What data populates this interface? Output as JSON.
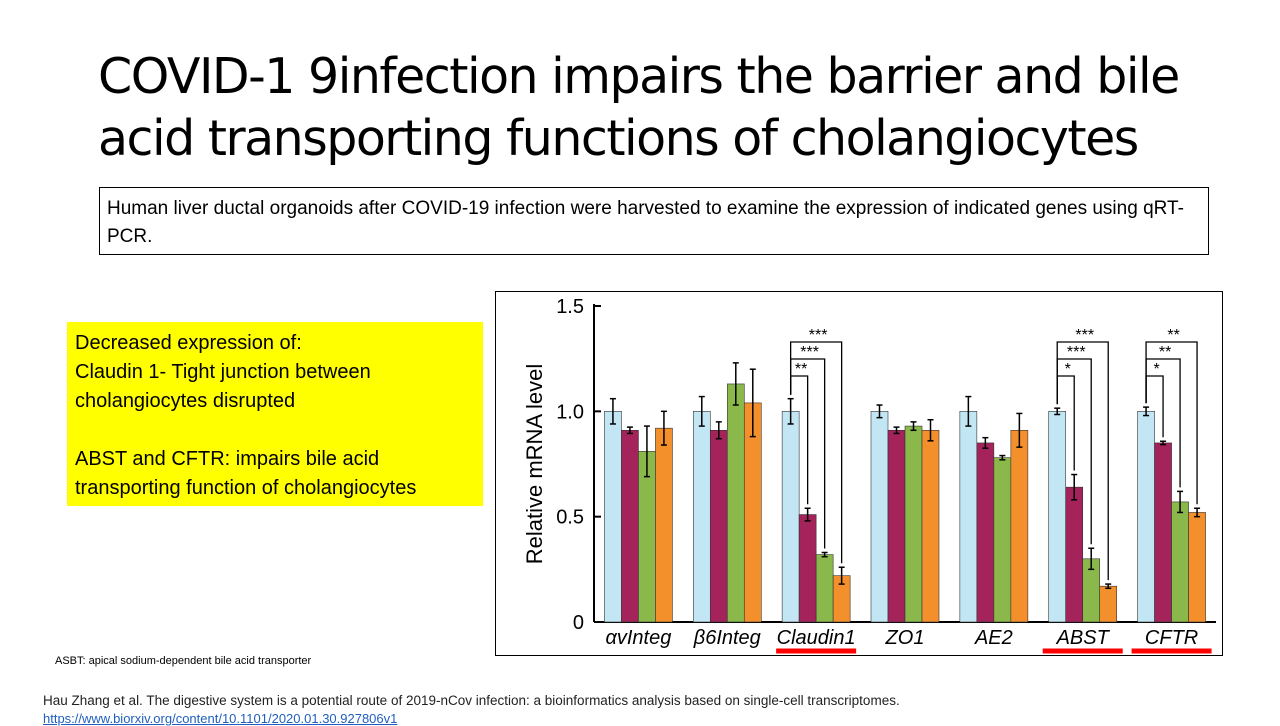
{
  "slide": {
    "title_line1": "COVID-1 9infection impairs the barrier and bile",
    "title_line2": "acid transporting functions of  cholangiocytes",
    "description": "Human liver ductal organoids after COVID-19 infection were harvested to examine the expression of indicated genes using qRT-PCR.",
    "notes": [
      "Decreased expression of:",
      "Claudin 1- Tight junction between",
      "cholangiocytes disrupted",
      "ABST and CFTR: impairs bile acid",
      "transporting function of cholangiocytes"
    ],
    "abbreviation": "ASBT:  apical sodium-dependent bile acid transporter",
    "citation": "Hau Zhang et al. The digestive system is a potential route of 2019-nCov infection: a bioinformatics analysis based on single-cell transcriptomes.",
    "link": "https://www.biorxiv.org/content/10.1101/2020.01.30.927806v1"
  },
  "colors": {
    "series": [
      "#c3e6f5",
      "#a3235a",
      "#8bb84a",
      "#f4902c"
    ],
    "highlight_underline": "#ff0000",
    "note_background": "#ffff00"
  },
  "chart_data": {
    "type": "bar",
    "ylabel": "Relative mRNA level",
    "ylim": [
      0,
      1.5
    ],
    "yticks": [
      "0",
      "0.5",
      "1.0",
      "1.5"
    ],
    "categories": [
      "αvInteg",
      "β6Integ",
      "Claudin1",
      "ZO1",
      "AE2",
      "ABST",
      "CFTR"
    ],
    "highlighted": [
      "Claudin1",
      "ABST",
      "CFTR"
    ],
    "series": [
      {
        "values": [
          1.0,
          1.0,
          1.0,
          1.0,
          1.0,
          1.0,
          1.0
        ],
        "errors": [
          0.06,
          0.07,
          0.06,
          0.03,
          0.07,
          0.015,
          0.02
        ]
      },
      {
        "values": [
          0.91,
          0.91,
          0.51,
          0.91,
          0.85,
          0.64,
          0.85
        ],
        "errors": [
          0.015,
          0.04,
          0.03,
          0.015,
          0.025,
          0.06,
          0.008
        ]
      },
      {
        "values": [
          0.81,
          1.13,
          0.32,
          0.93,
          0.78,
          0.3,
          0.57
        ],
        "errors": [
          0.12,
          0.1,
          0.01,
          0.02,
          0.01,
          0.05,
          0.05
        ]
      },
      {
        "values": [
          0.92,
          1.04,
          0.22,
          0.91,
          0.91,
          0.17,
          0.52
        ],
        "errors": [
          0.08,
          0.16,
          0.04,
          0.05,
          0.08,
          0.01,
          0.02
        ]
      }
    ],
    "significance": [
      {
        "category": "Claudin1",
        "labels": [
          "**",
          "***",
          "***"
        ]
      },
      {
        "category": "ABST",
        "labels": [
          "*",
          "***",
          "***"
        ]
      },
      {
        "category": "CFTR",
        "labels": [
          "*",
          "**",
          "**"
        ]
      }
    ]
  }
}
